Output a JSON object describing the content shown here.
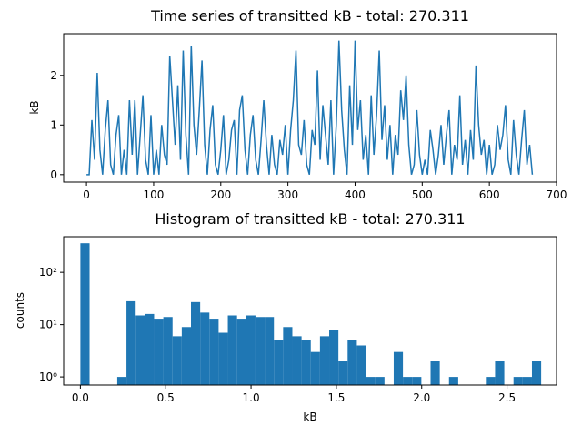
{
  "chart_data": [
    {
      "type": "line",
      "title": "Time series of transitted kB - total: 270.311",
      "ylabel": "kB",
      "x": [
        0,
        4,
        8,
        12,
        16,
        20,
        24,
        28,
        32,
        36,
        40,
        44,
        48,
        52,
        56,
        60,
        64,
        68,
        72,
        76,
        80,
        84,
        88,
        92,
        96,
        100,
        104,
        108,
        112,
        116,
        120,
        124,
        128,
        132,
        136,
        140,
        144,
        148,
        152,
        156,
        160,
        164,
        168,
        172,
        176,
        180,
        184,
        188,
        192,
        196,
        200,
        204,
        208,
        212,
        216,
        220,
        224,
        228,
        232,
        236,
        240,
        244,
        248,
        252,
        256,
        260,
        264,
        268,
        272,
        276,
        280,
        284,
        288,
        292,
        296,
        300,
        304,
        308,
        312,
        316,
        320,
        324,
        328,
        332,
        336,
        340,
        344,
        348,
        352,
        356,
        360,
        364,
        368,
        372,
        376,
        380,
        384,
        388,
        392,
        396,
        400,
        404,
        408,
        412,
        416,
        420,
        424,
        428,
        432,
        436,
        440,
        444,
        448,
        452,
        456,
        460,
        464,
        468,
        472,
        476,
        480,
        484,
        488,
        492,
        496,
        500,
        504,
        508,
        512,
        516,
        520,
        524,
        528,
        532,
        536,
        540,
        544,
        548,
        552,
        556,
        560,
        564,
        568,
        572,
        576,
        580,
        584,
        588,
        592,
        596,
        600,
        604,
        608,
        612,
        616,
        620,
        624,
        628,
        632,
        636,
        640,
        644,
        648,
        652,
        656,
        660,
        664
      ],
      "series": [
        {
          "color": "#1f77b4",
          "values": [
            0,
            0,
            1.1,
            0.3,
            2.05,
            0.5,
            0,
            0.9,
            1.5,
            0.2,
            0,
            0.8,
            1.2,
            0,
            0.5,
            0,
            1.5,
            0.4,
            1.5,
            0,
            0.8,
            1.6,
            0.3,
            0,
            1.2,
            0,
            0.5,
            0,
            1.0,
            0.4,
            0.2,
            2.4,
            1.5,
            0.6,
            1.8,
            0.3,
            2.5,
            0.8,
            0,
            2.6,
            1.0,
            0.4,
            1.3,
            2.3,
            0.6,
            0,
            0.9,
            1.4,
            0.2,
            0,
            0.5,
            1.2,
            0,
            0.3,
            0.9,
            1.1,
            0,
            1.3,
            1.6,
            0.5,
            0,
            0.8,
            1.2,
            0.3,
            0,
            0.7,
            1.5,
            0.6,
            0,
            0.8,
            0.2,
            0,
            0.7,
            0.4,
            1.0,
            0,
            0.9,
            1.5,
            2.5,
            0.6,
            0.4,
            1.1,
            0.2,
            0,
            0.9,
            0.6,
            2.1,
            0.3,
            1.4,
            0.8,
            0.2,
            1.5,
            0,
            1.0,
            2.7,
            1.3,
            0.5,
            0,
            1.8,
            0.6,
            2.7,
            0.9,
            1.5,
            0.3,
            0.8,
            0,
            1.6,
            0.4,
            1.2,
            2.5,
            0.7,
            1.4,
            0.3,
            1.0,
            0,
            0.8,
            0.4,
            1.7,
            1.1,
            2.0,
            0.6,
            0,
            0.2,
            1.3,
            0.4,
            0,
            0.3,
            0,
            0.9,
            0.5,
            0,
            0.4,
            1.0,
            0.2,
            0.8,
            1.3,
            0,
            0.6,
            0.3,
            1.6,
            0.2,
            0.7,
            0,
            0.9,
            0.3,
            2.2,
            1.0,
            0.4,
            0.7,
            0,
            0.6,
            0,
            0.2,
            1.0,
            0.5,
            0.8,
            1.4,
            0.3,
            0,
            1.1,
            0.4,
            0,
            0.7,
            1.3,
            0.2,
            0.6,
            0
          ]
        }
      ],
      "xlim": [
        -34,
        700
      ],
      "xticks": [
        0,
        100,
        200,
        300,
        400,
        500,
        600,
        700
      ],
      "ylim": [
        -0.15,
        2.84
      ],
      "yticks": [
        0,
        1,
        2
      ]
    },
    {
      "type": "histogram",
      "title": "Histogram of transitted kB - total: 270.311",
      "xlabel": "kB",
      "ylabel": "counts",
      "color": "#1f77b4",
      "bins": [
        0,
        0.054,
        0.108,
        0.162,
        0.216,
        0.27,
        0.324,
        0.378,
        0.432,
        0.486,
        0.54,
        0.594,
        0.648,
        0.702,
        0.756,
        0.81,
        0.864,
        0.918,
        0.972,
        1.026,
        1.08,
        1.134,
        1.188,
        1.242,
        1.296,
        1.35,
        1.404,
        1.458,
        1.512,
        1.566,
        1.62,
        1.674,
        1.728,
        1.782,
        1.836,
        1.89,
        1.944,
        1.998,
        2.052,
        2.106,
        2.16,
        2.214,
        2.268,
        2.322,
        2.376,
        2.43,
        2.484,
        2.538,
        2.592,
        2.646,
        2.7
      ],
      "counts": [
        360,
        0,
        0,
        0,
        1,
        28,
        15,
        16,
        13,
        14,
        6,
        9,
        27,
        17,
        13,
        7,
        15,
        13,
        15,
        14,
        14,
        5,
        9,
        6,
        5,
        3,
        6,
        8,
        2,
        5,
        4,
        1,
        1,
        0,
        3,
        1,
        1,
        0,
        2,
        0,
        1,
        0,
        0,
        0,
        1,
        2,
        0,
        1,
        1,
        2
      ],
      "xlim": [
        -0.098,
        2.79
      ],
      "xticks": [
        {
          "value": 0,
          "label": "0.0"
        },
        0.5,
        {
          "value": 1,
          "label": "1.0"
        },
        1.5,
        {
          "value": 2,
          "label": "2.0"
        },
        2.5
      ],
      "yscale": "log",
      "ylim": [
        0.7,
        480
      ],
      "yticks": [
        {
          "value": 1,
          "label": "10⁰"
        },
        {
          "value": 10,
          "label": "10¹"
        },
        {
          "value": 100,
          "label": "10²"
        }
      ]
    }
  ]
}
